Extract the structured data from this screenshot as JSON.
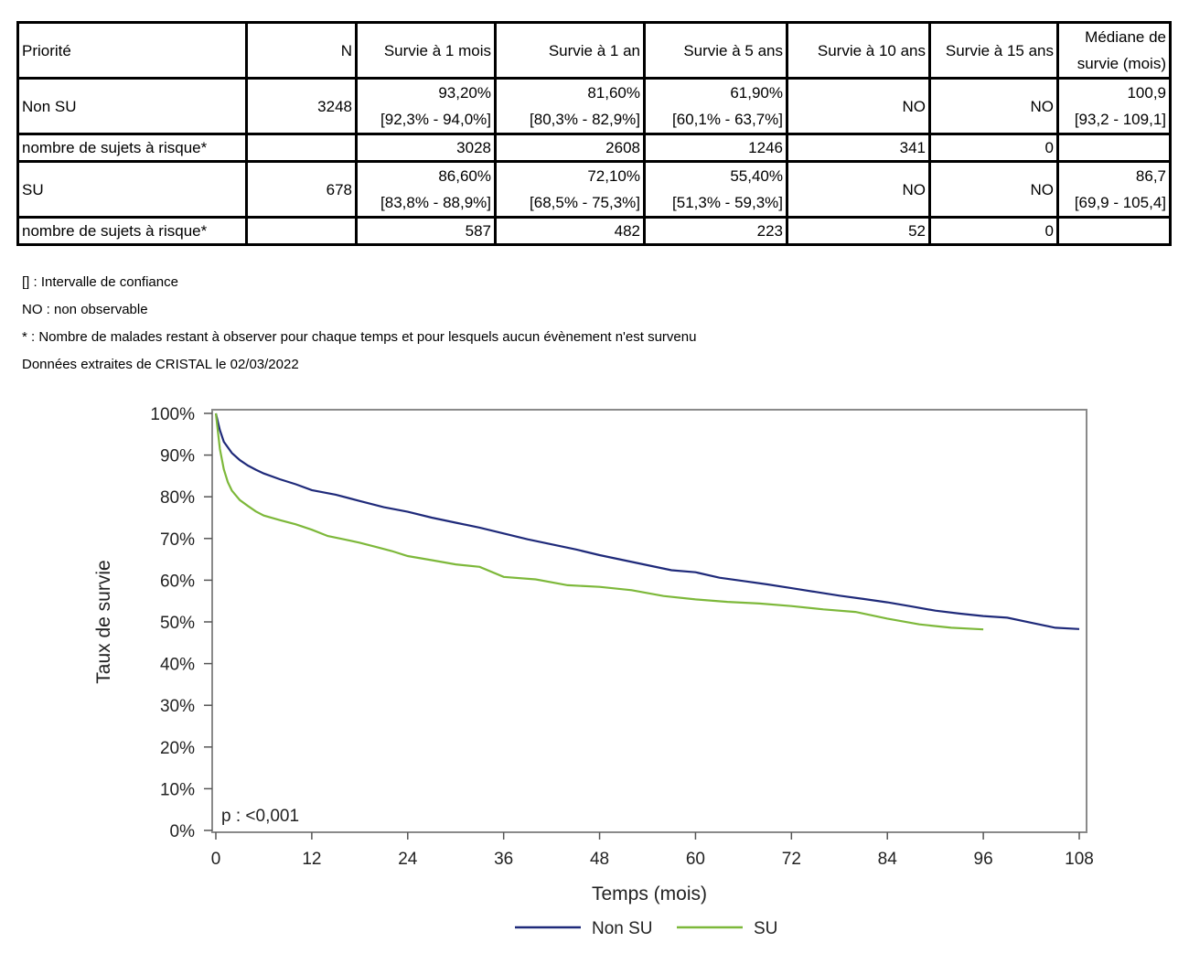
{
  "table": {
    "headers": [
      "Priorité",
      "N",
      "Survie à 1 mois",
      "Survie à 1 an",
      "Survie à 5 ans",
      "Survie à 10 ans",
      "Survie à 15 ans",
      "Médiane de survie (mois)"
    ],
    "header_median_line1": "Médiane de",
    "header_median_line2": "survie (mois)",
    "rows": [
      {
        "label": "Non SU",
        "n": "3248",
        "m1": "93,20%",
        "m1_ci": "[92,3% - 94,0%]",
        "y1": "81,60%",
        "y1_ci": "[80,3% - 82,9%]",
        "y5": "61,90%",
        "y5_ci": "[60,1% - 63,7%]",
        "y10": "NO",
        "y15": "NO",
        "median": "100,9",
        "median_ci": "[93,2 - 109,1]",
        "risk_label": "nombre de sujets à risque*",
        "risk": [
          "3028",
          "2608",
          "1246",
          "341",
          "0"
        ]
      },
      {
        "label": "SU",
        "n": "678",
        "m1": "86,60%",
        "m1_ci": "[83,8% - 88,9%]",
        "y1": "72,10%",
        "y1_ci": "[68,5% - 75,3%]",
        "y5": "55,40%",
        "y5_ci": "[51,3% - 59,3%]",
        "y10": "NO",
        "y15": "NO",
        "median": "86,7",
        "median_ci": "[69,9 - 105,4]",
        "risk_label": "nombre de sujets à risque*",
        "risk": [
          "587",
          "482",
          "223",
          "52",
          "0"
        ]
      }
    ]
  },
  "notes": [
    "[] : Intervalle de confiance",
    "NO : non observable",
    "* : Nombre de malades restant à observer pour chaque temps et pour lesquels aucun évènement n'est survenu",
    "Données extraites de CRISTAL le 02/03/2022"
  ],
  "chart_data": {
    "type": "line",
    "xlabel": "Temps (mois)",
    "ylabel": "Taux de survie",
    "xlim": [
      0,
      108
    ],
    "ylim": [
      0,
      100
    ],
    "x_ticks": [
      0,
      12,
      24,
      36,
      48,
      60,
      72,
      84,
      96,
      108
    ],
    "y_ticks": [
      0,
      10,
      20,
      30,
      40,
      50,
      60,
      70,
      80,
      90,
      100
    ],
    "y_tick_labels": [
      "0%",
      "10%",
      "20%",
      "30%",
      "40%",
      "50%",
      "60%",
      "70%",
      "80%",
      "90%",
      "100%"
    ],
    "annotation": "p : <0,001",
    "legend_position": "bottom",
    "series": [
      {
        "name": "Non SU",
        "color": "#1f2a7a",
        "points": [
          [
            0,
            100
          ],
          [
            0.5,
            96
          ],
          [
            1,
            93.2
          ],
          [
            2,
            90.5
          ],
          [
            3,
            88.8
          ],
          [
            4,
            87.5
          ],
          [
            5,
            86.5
          ],
          [
            6,
            85.6
          ],
          [
            8,
            84.2
          ],
          [
            10,
            83
          ],
          [
            12,
            81.6
          ],
          [
            15,
            80.5
          ],
          [
            18,
            79
          ],
          [
            21,
            77.5
          ],
          [
            24,
            76.4
          ],
          [
            27,
            75
          ],
          [
            30,
            73.8
          ],
          [
            33,
            72.6
          ],
          [
            36,
            71.2
          ],
          [
            39,
            69.8
          ],
          [
            42,
            68.6
          ],
          [
            45,
            67.4
          ],
          [
            48,
            66
          ],
          [
            51,
            64.8
          ],
          [
            54,
            63.6
          ],
          [
            57,
            62.4
          ],
          [
            60,
            61.9
          ],
          [
            63,
            60.6
          ],
          [
            66,
            59.8
          ],
          [
            69,
            59
          ],
          [
            72,
            58.1
          ],
          [
            75,
            57.2
          ],
          [
            78,
            56.3
          ],
          [
            81,
            55.5
          ],
          [
            84,
            54.7
          ],
          [
            87,
            53.7
          ],
          [
            90,
            52.7
          ],
          [
            93,
            52
          ],
          [
            96,
            51.4
          ],
          [
            99,
            51
          ],
          [
            102,
            49.8
          ],
          [
            105,
            48.6
          ],
          [
            108,
            48.3
          ]
        ]
      },
      {
        "name": "SU",
        "color": "#7db83a",
        "points": [
          [
            0,
            100
          ],
          [
            0.5,
            91.5
          ],
          [
            1,
            86.6
          ],
          [
            1.5,
            83.5
          ],
          [
            2,
            81.5
          ],
          [
            3,
            79.2
          ],
          [
            4,
            77.8
          ],
          [
            5,
            76.5
          ],
          [
            6,
            75.5
          ],
          [
            8,
            74.4
          ],
          [
            10,
            73.4
          ],
          [
            12,
            72.1
          ],
          [
            14,
            70.6
          ],
          [
            16,
            69.8
          ],
          [
            18,
            69
          ],
          [
            20,
            68
          ],
          [
            22,
            67
          ],
          [
            24,
            65.8
          ],
          [
            27,
            64.8
          ],
          [
            30,
            63.8
          ],
          [
            33,
            63.2
          ],
          [
            36,
            60.8
          ],
          [
            40,
            60.2
          ],
          [
            44,
            58.8
          ],
          [
            48,
            58.4
          ],
          [
            52,
            57.6
          ],
          [
            56,
            56.2
          ],
          [
            60,
            55.4
          ],
          [
            64,
            54.8
          ],
          [
            68,
            54.4
          ],
          [
            72,
            53.8
          ],
          [
            76,
            53
          ],
          [
            80,
            52.4
          ],
          [
            84,
            50.8
          ],
          [
            88,
            49.4
          ],
          [
            92,
            48.6
          ],
          [
            96,
            48.2
          ]
        ]
      }
    ]
  }
}
